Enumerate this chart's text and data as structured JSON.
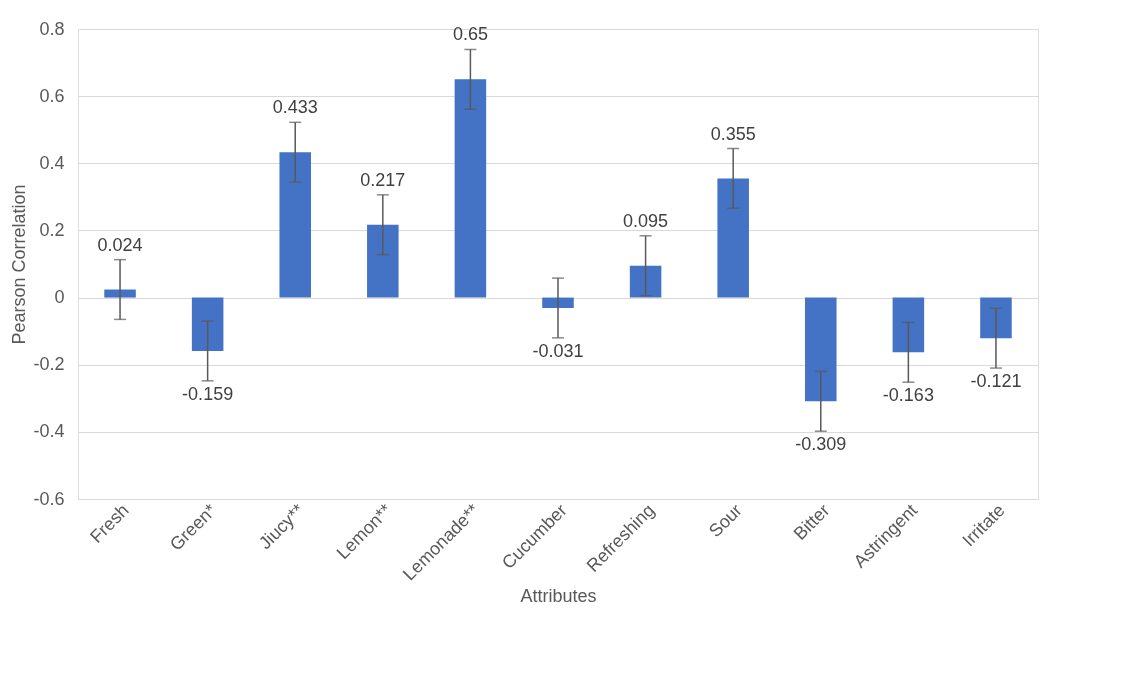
{
  "chart_data": {
    "type": "bar",
    "xlabel": "Attributes",
    "ylabel": "Pearson Correlation",
    "categories": [
      "Fresh",
      "Green*",
      "Jiucy**",
      "Lemon**",
      "Lemonade**",
      "Cucumber",
      "Refreshing",
      "Sour",
      "Bitter",
      "Astringent",
      "Irritate"
    ],
    "values": [
      0.024,
      -0.159,
      0.433,
      0.217,
      0.65,
      -0.031,
      0.095,
      0.355,
      -0.309,
      -0.163,
      -0.121
    ],
    "errors": [
      0.089,
      0.089,
      0.089,
      0.089,
      0.089,
      0.089,
      0.089,
      0.089,
      0.089,
      0.089,
      0.089
    ],
    "color": "#4472c4",
    "data_labels": true,
    "grid": "y",
    "ylim": [
      -0.6,
      0.8
    ],
    "yticks": [
      -0.6,
      -0.4,
      -0.2,
      0,
      0.2,
      0.4,
      0.6,
      0.8
    ]
  }
}
